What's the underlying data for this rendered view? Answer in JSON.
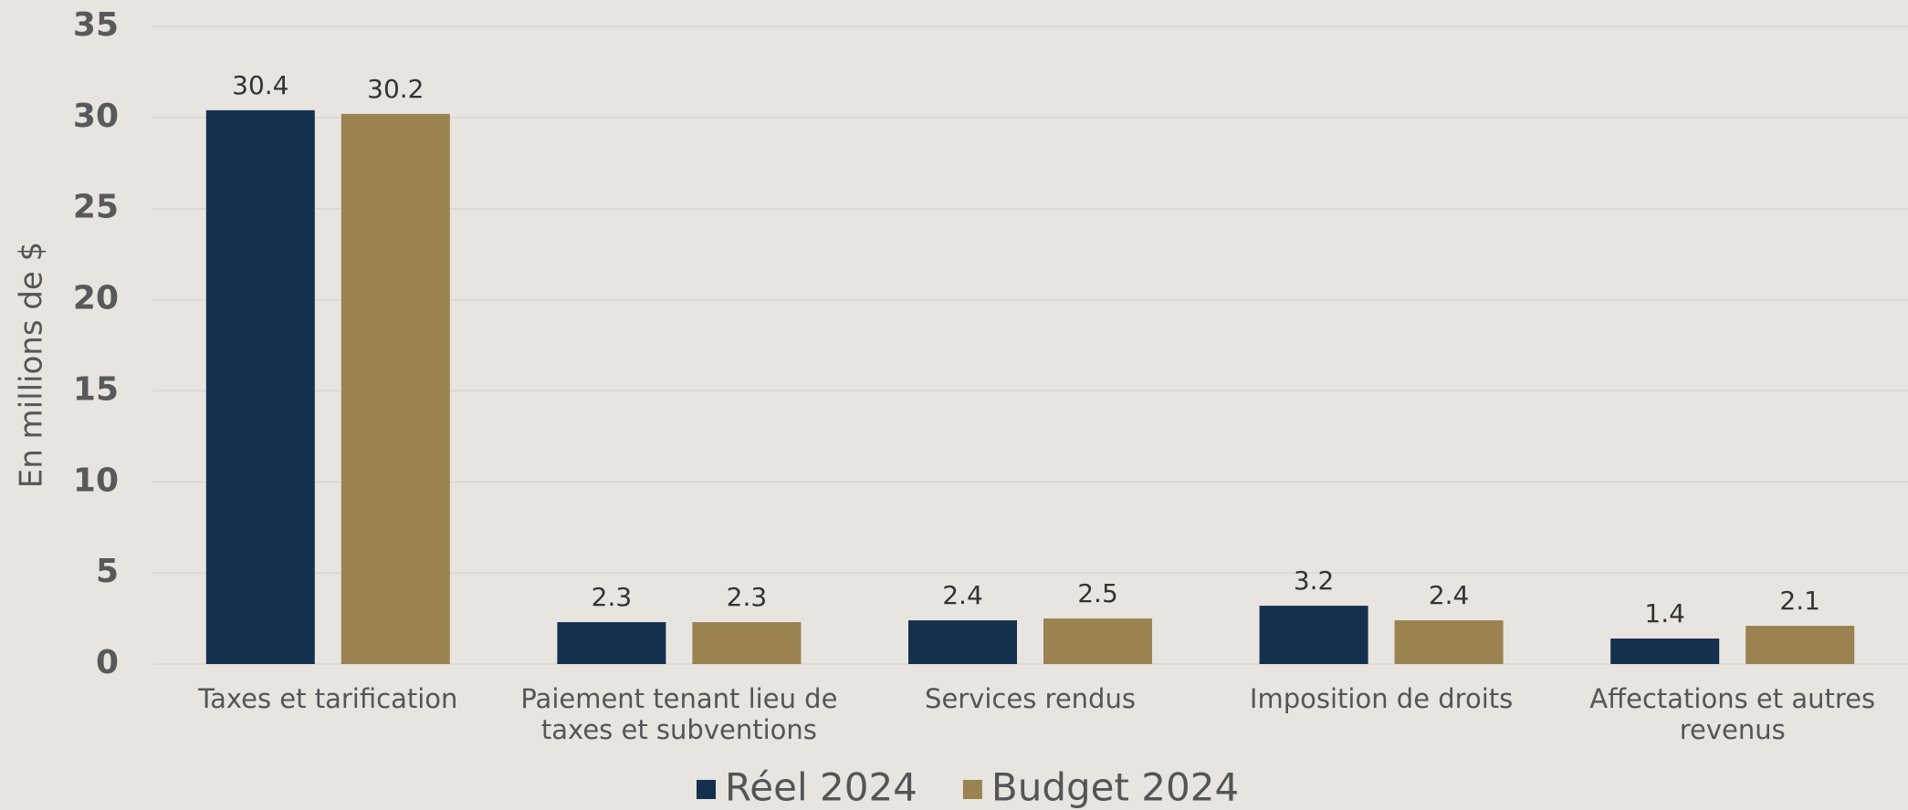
{
  "chart_data": {
    "type": "bar",
    "y_label": "En millions de $",
    "categories": [
      "Taxes et tarification",
      "Paiement tenant lieu de taxes et subventions",
      "Services rendus",
      "Imposition de droits",
      "Affectations et autres revenus"
    ],
    "series": [
      {
        "name": "Réel 2024",
        "color": "#14304f",
        "values": [
          30.4,
          2.3,
          2.4,
          3.2,
          1.4
        ]
      },
      {
        "name": "Budget 2024",
        "color": "#9a8251",
        "values": [
          30.2,
          2.3,
          2.5,
          2.4,
          2.1
        ]
      }
    ],
    "ylim": [
      0,
      35
    ],
    "yticks": [
      0,
      5,
      10,
      15,
      20,
      25,
      30,
      35
    ],
    "grid": true,
    "legend": "bottom"
  }
}
